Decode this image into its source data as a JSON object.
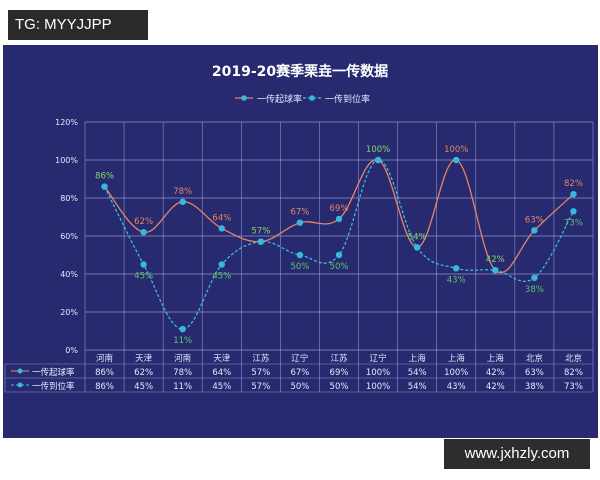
{
  "watermarks": {
    "top_left": "TG: MYYJJPP",
    "bottom_right": "www.jxhzly.com"
  },
  "colors": {
    "background": "#272a6e",
    "grid": "#8f92c8",
    "text": "#e6e8ff",
    "series1_line": "#e58567",
    "series1_label": "#e58567",
    "series2_line": "#3fc2e4",
    "series2_label": "#5fc46c",
    "marker": "#38b8de"
  },
  "chart_data": {
    "type": "line",
    "title": "2019-20赛季栗垚一传数据",
    "categories": [
      "河南",
      "天津",
      "河南",
      "天津",
      "江苏",
      "辽宁",
      "江苏",
      "辽宁",
      "上海",
      "上海",
      "上海",
      "北京",
      "北京"
    ],
    "y_ticks": [
      "0%",
      "20%",
      "40%",
      "60%",
      "80%",
      "100%",
      "120%"
    ],
    "ylim": [
      0,
      120
    ],
    "grid": true,
    "legend_position": "top-center",
    "series": [
      {
        "name": "一传起球率",
        "values": [
          86,
          62,
          78,
          64,
          57,
          67,
          69,
          100,
          54,
          100,
          42,
          63,
          82
        ],
        "labels": [
          "86%",
          "62%",
          "78%",
          "64%",
          "57%",
          "67%",
          "69%",
          "100%",
          "54%",
          "100%",
          "42%",
          "63%",
          "82%"
        ]
      },
      {
        "name": "一传到位率",
        "values": [
          86,
          45,
          11,
          45,
          57,
          50,
          50,
          100,
          54,
          43,
          42,
          38,
          73
        ],
        "labels": [
          "86%",
          "45%",
          "11%",
          "45%",
          "57%",
          "50%",
          "50%",
          "100%",
          "54%",
          "43%",
          "42%",
          "38%",
          "73%"
        ]
      }
    ],
    "table": {
      "rows": [
        {
          "name": "一传起球率",
          "cells": [
            "86%",
            "62%",
            "78%",
            "64%",
            "57%",
            "67%",
            "69%",
            "100%",
            "54%",
            "100%",
            "42%",
            "63%",
            "82%"
          ]
        },
        {
          "name": "一传到位率",
          "cells": [
            "86%",
            "45%",
            "11%",
            "45%",
            "57%",
            "50%",
            "50%",
            "100%",
            "54%",
            "43%",
            "42%",
            "38%",
            "73%"
          ]
        }
      ]
    }
  }
}
